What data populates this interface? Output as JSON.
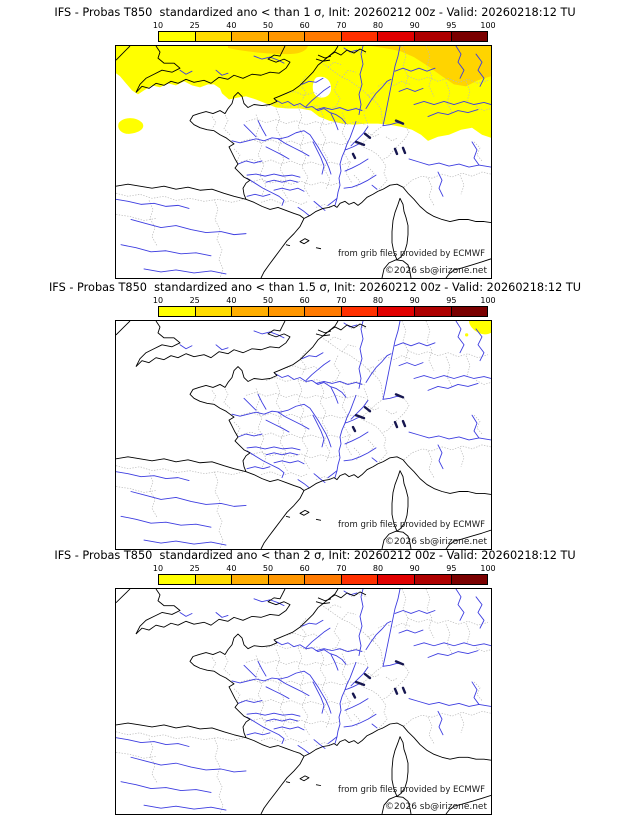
{
  "panels": [
    {
      "title": "IFS - Probas T850  standardized ano < than 1 σ, Init: 20260212 00z - Valid: 20260218:12 TU",
      "sigma_threshold": "1",
      "shading": "north-band"
    },
    {
      "title": "IFS - Probas T850  standardized ano < than 1.5 σ, Init: 20260212 00z - Valid: 20260218:12 TU",
      "sigma_threshold": "1.5",
      "shading": "corner-spot"
    },
    {
      "title": "IFS - Probas T850  standardized ano < than 2 σ, Init: 20260212 00z - Valid: 20260218:12 TU",
      "sigma_threshold": "2",
      "shading": "none"
    }
  ],
  "colorbar": {
    "ticks": [
      "10",
      "25",
      "40",
      "50",
      "60",
      "70",
      "80",
      "90",
      "95",
      "100"
    ],
    "segment_colors": [
      "#FFFF00",
      "#FFDC00",
      "#FFAE00",
      "#FF9600",
      "#FF7A00",
      "#FF3000",
      "#E10000",
      "#AE0000",
      "#7A0000"
    ]
  },
  "map": {
    "attribution_line1": "from grib files provided by ECMWF",
    "copyright": "©2026 sb@irizone.net",
    "colors": {
      "coast": "#000000",
      "admin_border": "#b9b9b9",
      "river": "#3d3de0",
      "lake": "#16164f",
      "shade_low": "#FFFF00",
      "shade_mid": "#FFD400",
      "sea": "#FFFFFF"
    }
  }
}
